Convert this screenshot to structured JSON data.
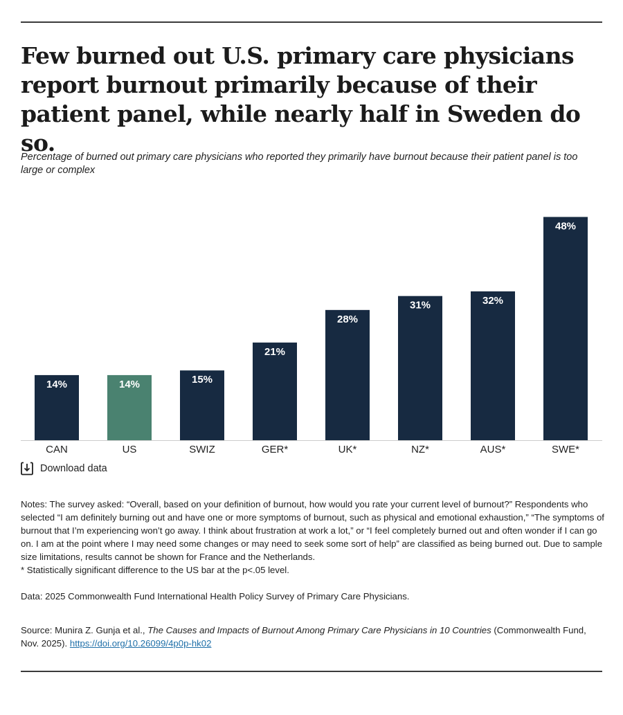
{
  "title": "Few burned out U.S. primary care physicians report burnout primarily because of their patient panel, while nearly half in Sweden do so.",
  "subtitle": "Percentage of burned out primary care physicians who reported they primarily have burnout because their patient panel is too large or complex",
  "chart_data": {
    "type": "bar",
    "title": "",
    "xlabel": "",
    "ylabel": "",
    "ylim": [
      0,
      50
    ],
    "grid": false,
    "legend": "none",
    "categories": [
      "CAN",
      "US",
      "SWIZ",
      "GER*",
      "UK*",
      "NZ*",
      "AUS*",
      "SWE*"
    ],
    "values": [
      14,
      14,
      15,
      21,
      28,
      31,
      32,
      48
    ],
    "value_labels": [
      "14%",
      "14%",
      "15%",
      "21%",
      "28%",
      "31%",
      "32%",
      "48%"
    ],
    "highlight_category": "US",
    "colors": {
      "default": "#172a41",
      "highlight": "#4a8270",
      "axis": "#cccccc"
    }
  },
  "download": {
    "label": "Download data",
    "icon": "download-icon"
  },
  "notes": {
    "main": "Notes: The survey asked: “Overall, based on your definition of burnout, how would you rate your current level of burnout?” Respondents who selected “I am definitely burning out and have one or more symptoms of burnout, such as physical and emotional exhaustion,” “The symptoms of burnout that I’m experiencing won’t go away. I think about frustration at work a lot,” or “I feel completely burned out and often wonder if I can go on. I am at the point where I may need some changes or may need to seek some sort of help” are classified as being burned out. Due to sample size limitations, results cannot be shown for France and the Netherlands.",
    "significance": "* Statistically significant difference to the US bar at the p<.05 level."
  },
  "data_source": "Data: 2025 Commonwealth Fund International Health Policy Survey of Primary Care Physicians.",
  "source": {
    "prefix": "Source: Munira Z. Gunja et al., ",
    "publication": "The Causes and Impacts of Burnout Among Primary Care Physicians in 10 Countries",
    "suffix": " (Commonwealth Fund, Nov. 2025). ",
    "link_text": "https://doi.org/10.26099/4p0p-hk02"
  }
}
